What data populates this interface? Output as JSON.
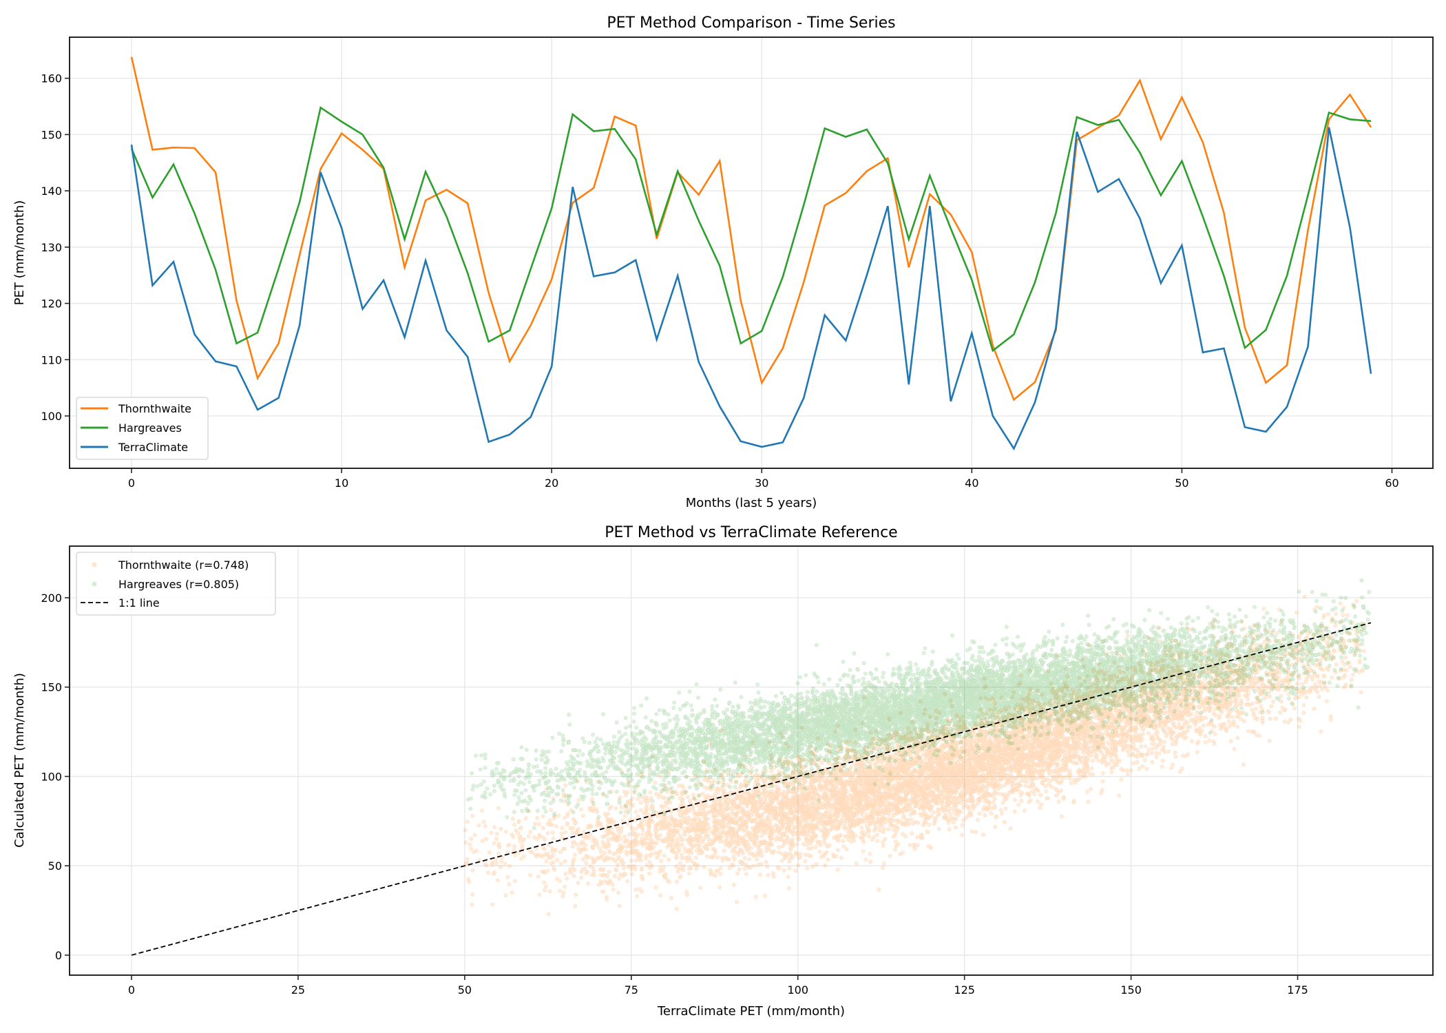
{
  "figure": {
    "top_title": "PET Method Comparison - Time Series",
    "bottom_title": "PET Method vs TerraClimate Reference"
  },
  "colors": {
    "thornthwaite": "#ff7f0e",
    "hargreaves": "#2ca02c",
    "terraclimate": "#1f77b4",
    "one_to_one": "#000000"
  },
  "chart_data": [
    {
      "type": "line",
      "title": "PET Method Comparison - Time Series",
      "xlabel": "Months (last 5 years)",
      "ylabel": "PET (mm/month)",
      "xlim": [
        -2.95,
        61.95
      ],
      "ylim": [
        90.7,
        167.3
      ],
      "xticks": [
        0,
        10,
        20,
        30,
        40,
        50,
        60
      ],
      "yticks": [
        100,
        110,
        120,
        130,
        140,
        150,
        160
      ],
      "grid": true,
      "legend_position": "lower-left",
      "x": [
        0,
        1,
        2,
        3,
        4,
        5,
        6,
        7,
        8,
        9,
        10,
        11,
        12,
        13,
        14,
        15,
        16,
        17,
        18,
        19,
        20,
        21,
        22,
        23,
        24,
        25,
        26,
        27,
        28,
        29,
        30,
        31,
        32,
        33,
        34,
        35,
        36,
        37,
        38,
        39,
        40,
        41,
        42,
        43,
        44,
        45,
        46,
        47,
        48,
        49,
        50,
        51,
        52,
        53,
        54,
        55,
        56,
        57,
        58,
        59
      ],
      "series": [
        {
          "name": "Thornthwaite",
          "color": "#ff7f0e",
          "values": [
            163.8,
            147.3,
            147.7,
            147.6,
            143.3,
            120.5,
            106.7,
            112.9,
            128.6,
            143.9,
            150.2,
            147.3,
            143.9,
            126.4,
            138.3,
            140.2,
            137.8,
            121.9,
            109.7,
            116.1,
            124.3,
            137.9,
            140.5,
            153.2,
            151.6,
            131.5,
            143.3,
            139.3,
            145.3,
            120.5,
            105.9,
            112.0,
            123.8,
            137.4,
            139.6,
            143.5,
            145.8,
            126.4,
            139.4,
            135.8,
            129.1,
            112.5,
            102.9,
            106.0,
            115.2,
            149.0,
            151.2,
            153.4,
            159.6,
            149.2,
            156.6,
            148.6,
            136.1,
            115.7,
            105.9,
            109.0,
            133.0,
            152.7,
            157.1,
            151.3
          ]
        },
        {
          "name": "Hargreaves",
          "color": "#2ca02c",
          "values": [
            147.5,
            138.8,
            144.7,
            136.0,
            126.0,
            112.9,
            114.8,
            126.2,
            138.0,
            154.8,
            152.3,
            150.0,
            144.1,
            131.4,
            143.4,
            135.4,
            125.4,
            113.2,
            115.2,
            126.1,
            136.9,
            153.6,
            150.6,
            151.0,
            145.6,
            132.2,
            143.5,
            134.7,
            126.7,
            112.9,
            115.1,
            124.7,
            137.5,
            151.1,
            149.6,
            150.9,
            144.9,
            131.4,
            142.7,
            133.3,
            124.2,
            111.6,
            114.5,
            123.7,
            136.0,
            153.1,
            151.7,
            152.6,
            146.8,
            139.2,
            145.3,
            135.4,
            124.9,
            112.1,
            115.3,
            124.9,
            139.2,
            153.9,
            152.7,
            152.4
          ]
        },
        {
          "name": "TerraClimate",
          "color": "#1f77b4",
          "values": [
            148.2,
            123.2,
            127.4,
            114.5,
            109.7,
            108.8,
            101.1,
            103.2,
            116.1,
            143.3,
            133.4,
            119.0,
            124.1,
            114.0,
            127.6,
            115.2,
            110.5,
            95.4,
            96.7,
            99.8,
            108.8,
            140.7,
            124.8,
            125.5,
            127.7,
            113.6,
            124.9,
            109.6,
            101.7,
            95.5,
            94.5,
            95.3,
            103.2,
            117.9,
            113.4,
            125.0,
            137.3,
            105.6,
            137.3,
            102.6,
            114.7,
            100.0,
            94.2,
            102.4,
            115.6,
            150.5,
            139.8,
            142.1,
            135.1,
            123.6,
            130.3,
            111.3,
            112.0,
            98.0,
            97.2,
            101.6,
            112.3,
            151.3,
            133.5,
            107.5
          ]
        }
      ]
    },
    {
      "type": "scatter",
      "title": "PET Method vs TerraClimate Reference",
      "xlabel": "TerraClimate PET (mm/month)",
      "ylabel": "Calculated PET (mm/month)",
      "xlim": [
        -9.3,
        195.3
      ],
      "ylim": [
        -11.2,
        228.9
      ],
      "xticks": [
        0,
        25,
        50,
        75,
        100,
        125,
        150,
        175
      ],
      "yticks": [
        0,
        50,
        100,
        150,
        200
      ],
      "grid": true,
      "legend_position": "upper-left",
      "series": [
        {
          "name": "Thornthwaite (r=0.748)",
          "color": "#ff7f0e",
          "alpha": 0.15,
          "r": 0.748,
          "x_range": [
            50,
            185
          ],
          "trend": [
            [
              55,
              58
            ],
            [
              75,
              67
            ],
            [
              100,
              82
            ],
            [
              125,
              105
            ],
            [
              150,
              135
            ],
            [
              175,
              160
            ]
          ],
          "spread": 14
        },
        {
          "name": "Hargreaves (r=0.805)",
          "color": "#2ca02c",
          "alpha": 0.15,
          "r": 0.805,
          "x_range": [
            50,
            186
          ],
          "trend": [
            [
              55,
              95
            ],
            [
              75,
              110
            ],
            [
              100,
              125
            ],
            [
              125,
              143
            ],
            [
              150,
              158
            ],
            [
              175,
              172
            ],
            [
              186,
              180
            ]
          ],
          "spread": 11
        },
        {
          "name": "1:1 line",
          "type": "line",
          "style": "dashed",
          "color": "#000000",
          "x": [
            0,
            186
          ],
          "y": [
            0,
            186
          ]
        }
      ]
    }
  ]
}
